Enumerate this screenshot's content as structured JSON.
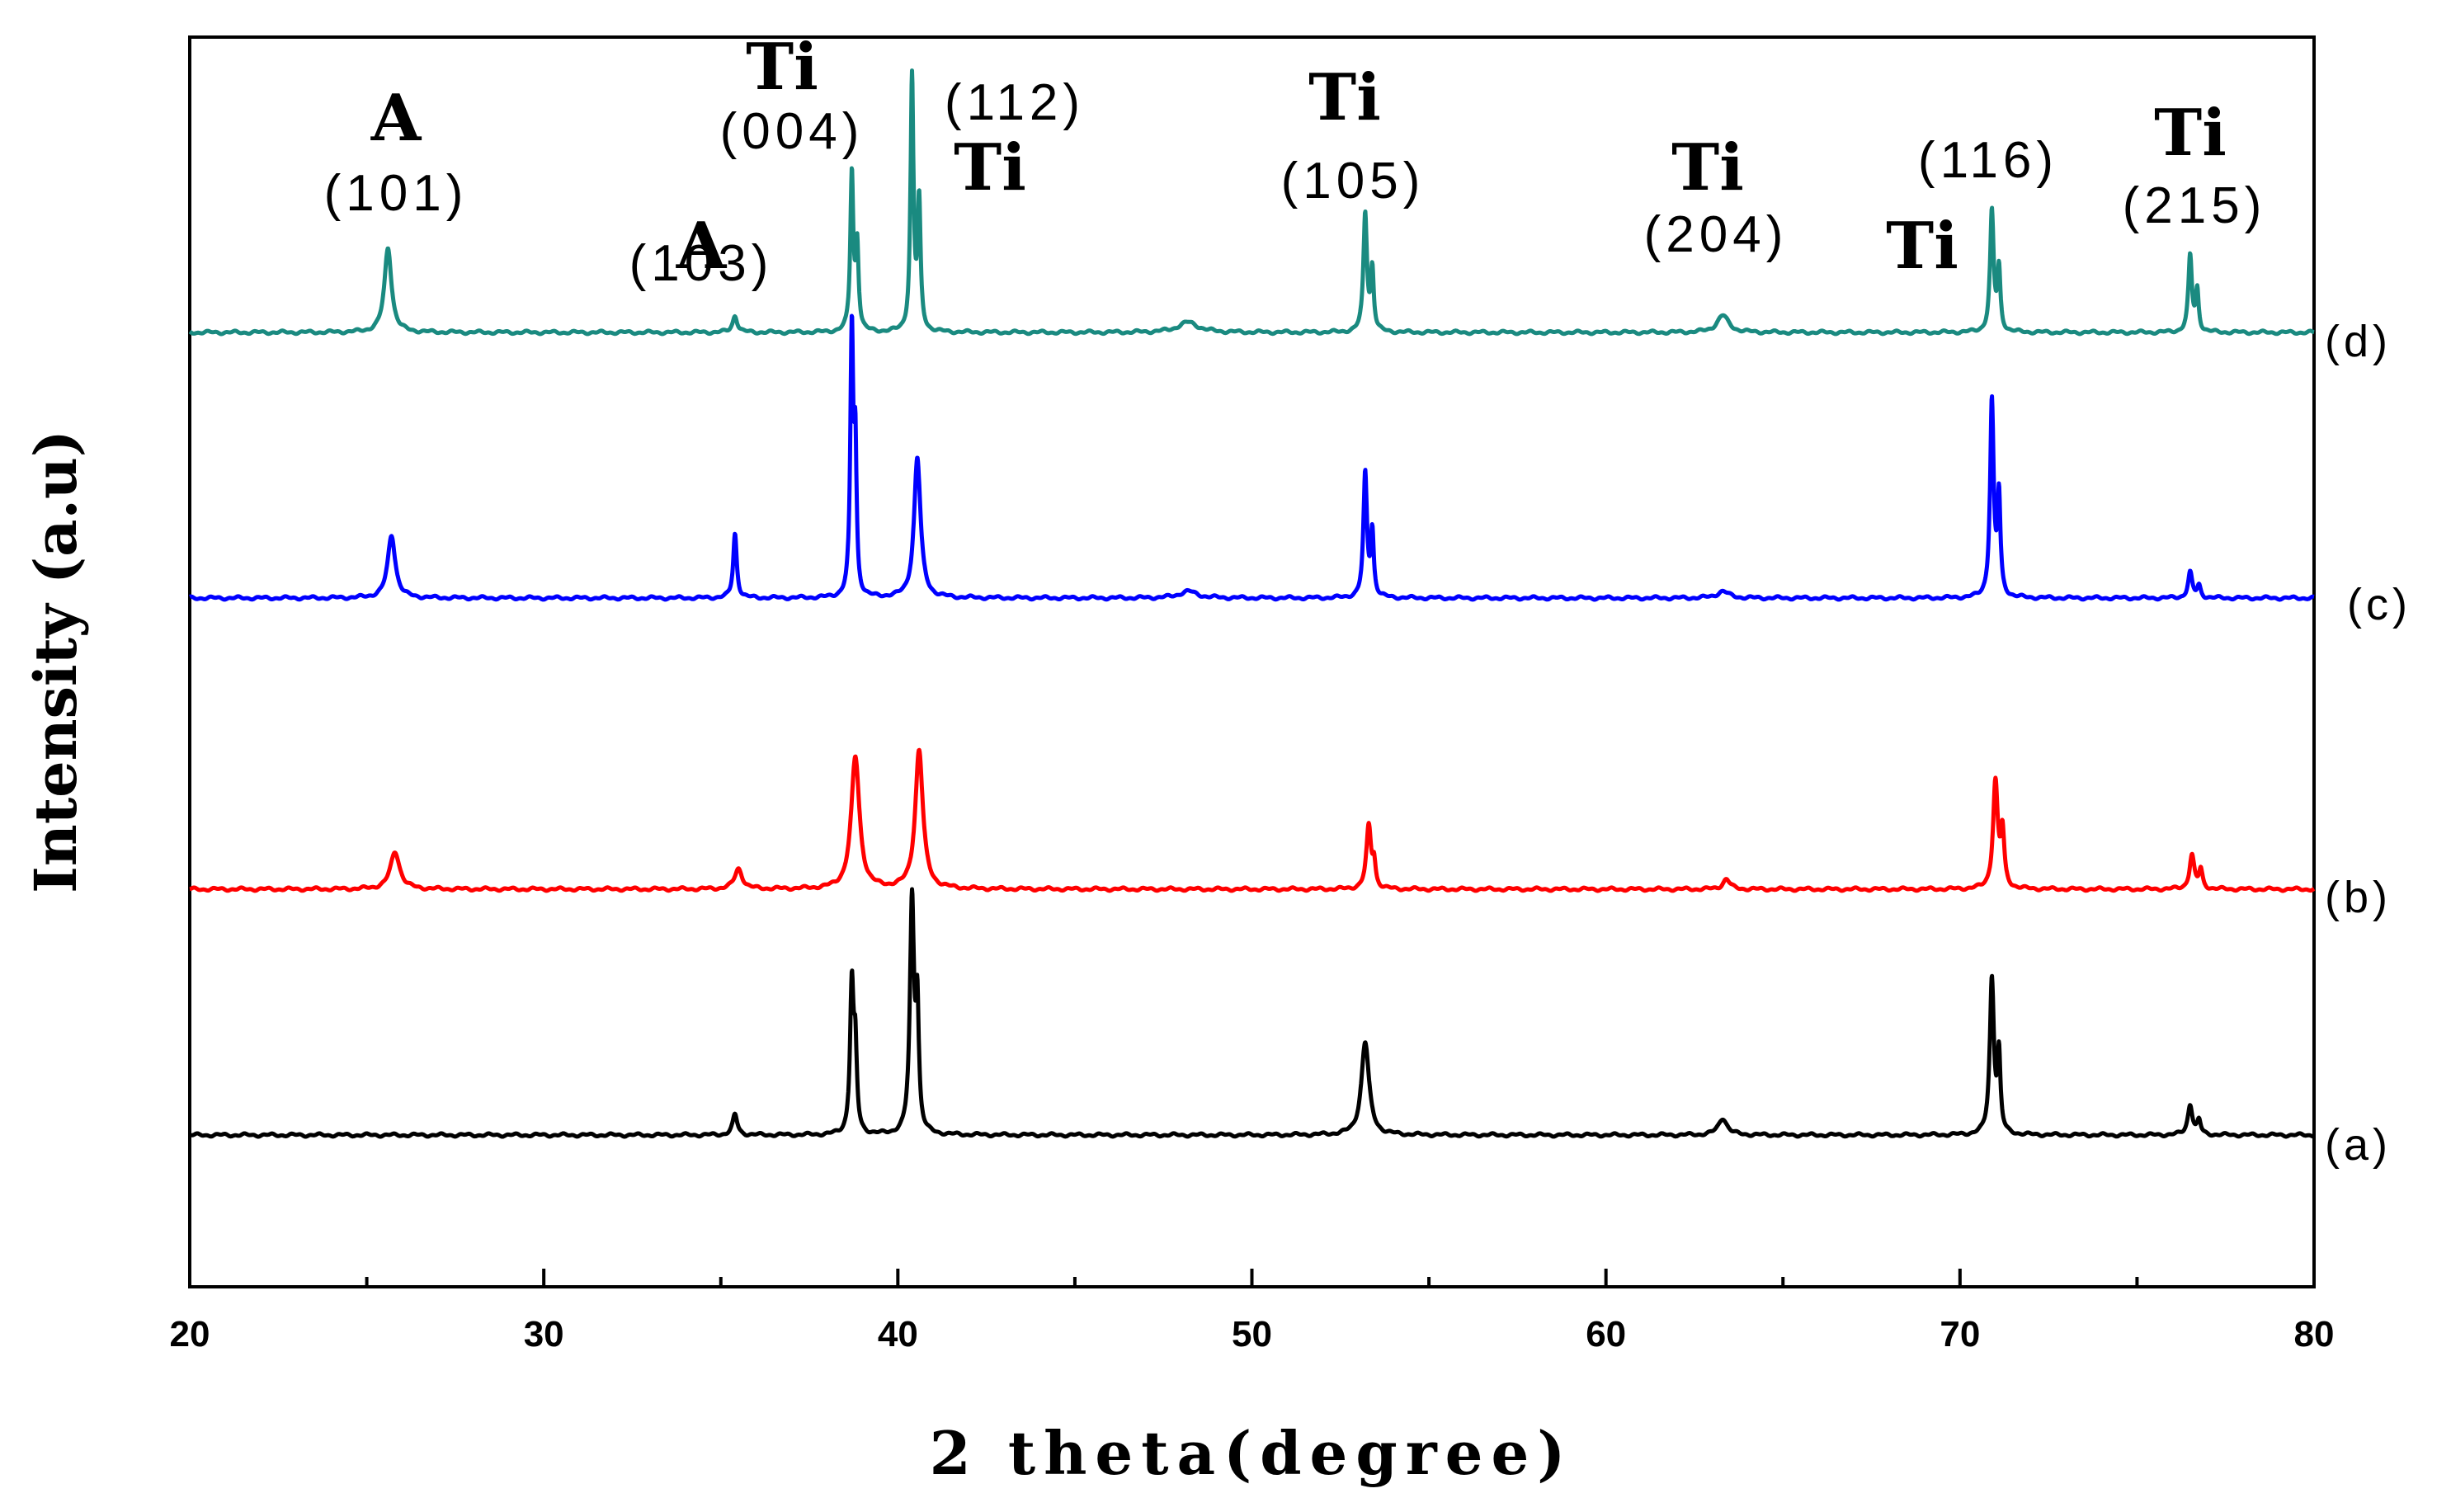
{
  "chart_data": {
    "type": "line",
    "title": "",
    "xlabel": "2 theta(degree)",
    "ylabel": "Intensity (a.u)",
    "xlim": [
      20,
      80
    ],
    "x_ticks": [
      20,
      30,
      40,
      50,
      60,
      70,
      80
    ],
    "x_tick_labels": [
      "20",
      "30",
      "40",
      "50",
      "60",
      "70",
      "80"
    ],
    "y_ticks_shown": false,
    "grid": false,
    "series": [
      {
        "name": "(a)",
        "color": "#000000",
        "baseline": 0,
        "peaks": [
          {
            "pos": 35.4,
            "height": 12,
            "width": 0.08
          },
          {
            "pos": 38.7,
            "height": 88,
            "width": 0.06
          },
          {
            "pos": 38.8,
            "height": 45,
            "width": 0.05
          },
          {
            "pos": 40.4,
            "height": 138,
            "width": 0.07
          },
          {
            "pos": 40.55,
            "height": 70,
            "width": 0.05
          },
          {
            "pos": 53.2,
            "height": 55,
            "width": 0.13
          },
          {
            "pos": 63.3,
            "height": 10,
            "width": 0.15
          },
          {
            "pos": 70.9,
            "height": 92,
            "width": 0.07
          },
          {
            "pos": 71.1,
            "height": 45,
            "width": 0.05
          },
          {
            "pos": 76.5,
            "height": 18,
            "width": 0.08
          },
          {
            "pos": 76.75,
            "height": 8,
            "width": 0.06
          }
        ]
      },
      {
        "name": "(b)",
        "color": "#ff0000",
        "baseline": 0,
        "peaks": [
          {
            "pos": 25.8,
            "height": 22,
            "width": 0.16
          },
          {
            "pos": 35.5,
            "height": 12,
            "width": 0.13
          },
          {
            "pos": 38.8,
            "height": 78,
            "width": 0.14
          },
          {
            "pos": 40.6,
            "height": 82,
            "width": 0.13
          },
          {
            "pos": 53.3,
            "height": 37,
            "width": 0.08
          },
          {
            "pos": 53.45,
            "height": 14,
            "width": 0.05
          },
          {
            "pos": 63.4,
            "height": 6,
            "width": 0.12
          },
          {
            "pos": 71.0,
            "height": 63,
            "width": 0.08
          },
          {
            "pos": 71.2,
            "height": 32,
            "width": 0.06
          },
          {
            "pos": 76.55,
            "height": 20,
            "width": 0.08
          },
          {
            "pos": 76.8,
            "height": 11,
            "width": 0.06
          }
        ]
      },
      {
        "name": "(c)",
        "color": "#0000ff",
        "baseline": 0,
        "peaks": [
          {
            "pos": 25.7,
            "height": 37,
            "width": 0.13
          },
          {
            "pos": 35.4,
            "height": 38,
            "width": 0.06
          },
          {
            "pos": 38.7,
            "height": 157,
            "width": 0.05
          },
          {
            "pos": 38.8,
            "height": 80,
            "width": 0.04
          },
          {
            "pos": 40.55,
            "height": 83,
            "width": 0.11
          },
          {
            "pos": 48.2,
            "height": 4,
            "width": 0.3
          },
          {
            "pos": 53.2,
            "height": 73,
            "width": 0.06
          },
          {
            "pos": 53.4,
            "height": 38,
            "width": 0.05
          },
          {
            "pos": 63.3,
            "height": 4,
            "width": 0.2
          },
          {
            "pos": 70.9,
            "height": 116,
            "width": 0.06
          },
          {
            "pos": 71.1,
            "height": 58,
            "width": 0.05
          },
          {
            "pos": 76.5,
            "height": 15,
            "width": 0.07
          },
          {
            "pos": 76.75,
            "height": 7,
            "width": 0.06
          }
        ]
      },
      {
        "name": "(d)",
        "color": "#1a8a80",
        "baseline": 0,
        "peaks": [
          {
            "pos": 25.6,
            "height": 50,
            "width": 0.12
          },
          {
            "pos": 35.4,
            "height": 10,
            "width": 0.08
          },
          {
            "pos": 38.7,
            "height": 93,
            "width": 0.05
          },
          {
            "pos": 38.85,
            "height": 50,
            "width": 0.05
          },
          {
            "pos": 40.4,
            "height": 150,
            "width": 0.05
          },
          {
            "pos": 40.6,
            "height": 75,
            "width": 0.05
          },
          {
            "pos": 48.2,
            "height": 6,
            "width": 0.35
          },
          {
            "pos": 53.2,
            "height": 70,
            "width": 0.06
          },
          {
            "pos": 53.4,
            "height": 36,
            "width": 0.05
          },
          {
            "pos": 63.3,
            "height": 10,
            "width": 0.2
          },
          {
            "pos": 70.9,
            "height": 71,
            "width": 0.06
          },
          {
            "pos": 71.1,
            "height": 36,
            "width": 0.05
          },
          {
            "pos": 76.5,
            "height": 45,
            "width": 0.06
          },
          {
            "pos": 76.7,
            "height": 24,
            "width": 0.05
          }
        ]
      }
    ],
    "annotations": [
      {
        "text": "A",
        "style": "bold"
      },
      {
        "text": "(101)",
        "style": "miller"
      },
      {
        "text": "A",
        "style": "bold"
      },
      {
        "text": "(103)",
        "style": "miller"
      },
      {
        "text": "Ti",
        "style": "bold"
      },
      {
        "text": "(004)",
        "style": "miller"
      },
      {
        "text": "(112)",
        "style": "miller"
      },
      {
        "text": "Ti",
        "style": "bold"
      },
      {
        "text": "Ti",
        "style": "bold"
      },
      {
        "text": "(105)",
        "style": "miller"
      },
      {
        "text": "Ti",
        "style": "bold"
      },
      {
        "text": "(204)",
        "style": "miller"
      },
      {
        "text": "(116)",
        "style": "miller"
      },
      {
        "text": "Ti",
        "style": "bold"
      },
      {
        "text": "Ti",
        "style": "bold"
      },
      {
        "text": "(215)",
        "style": "miller"
      }
    ]
  }
}
